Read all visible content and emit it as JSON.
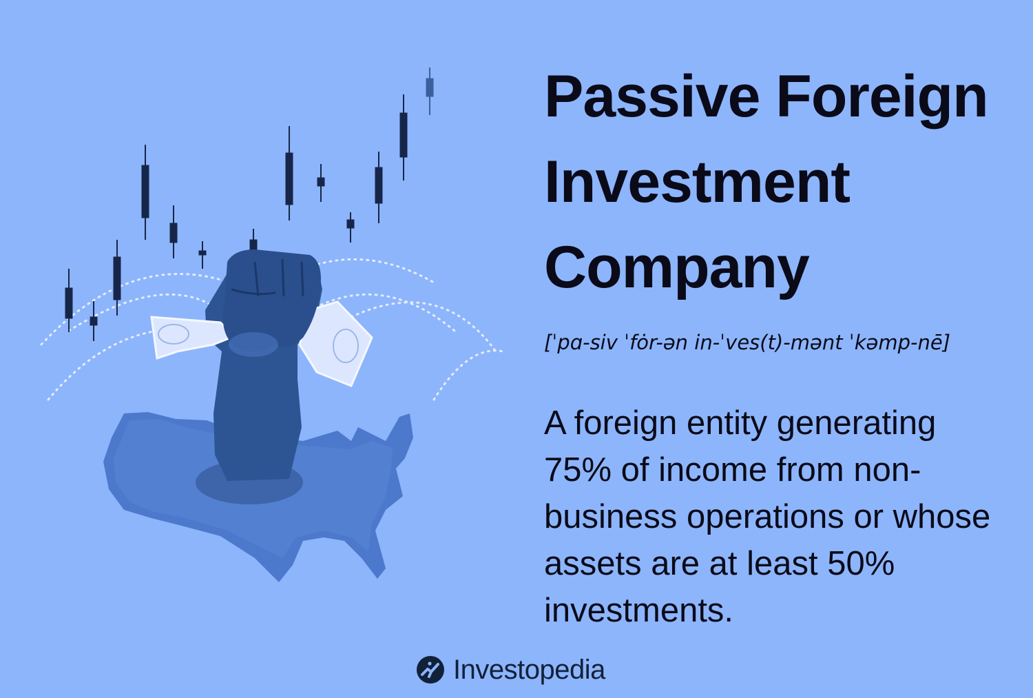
{
  "title": "Passive Foreign Investment Company",
  "pronunciation": "[ˈpɑ-siv ˈfȯr-ən in-ˈves(t)-mənt ˈkəmp-nē]",
  "definition": "A foreign entity generating 75% of income from non-business operations or whose assets are at least 50% investments.",
  "brand": {
    "name": "Investopedia",
    "logo_icon": "investopedia-logo-icon"
  },
  "illustration": {
    "description_icon": "fist-holding-money-over-us-map-icon",
    "candlestick_chart_icon": "candlestick-chart-icon"
  },
  "colors": {
    "background": "#8db5fb",
    "text": "#0a0a18",
    "map": "#4d79cc",
    "arm": "#2d5593",
    "candles": "#16264a"
  }
}
